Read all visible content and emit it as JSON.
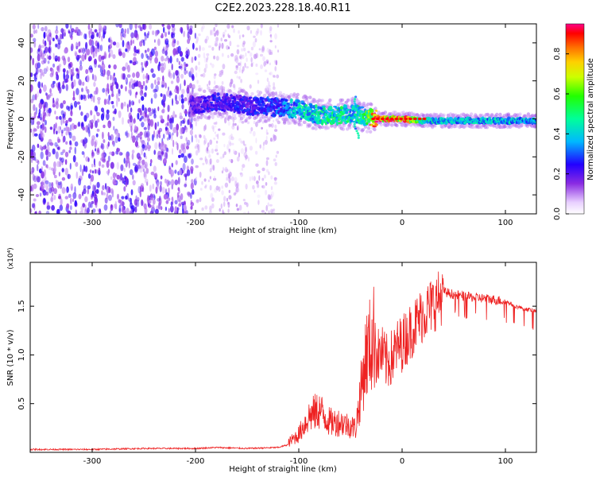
{
  "title": "C2E2.2023.228.18.40.R11",
  "chart_data": [
    {
      "type": "heatmap",
      "name": "spectrogram",
      "xlabel": "Height of straight line (km)",
      "ylabel": "Frequency (Hz)",
      "xlim": [
        -360,
        130
      ],
      "ylim": [
        -50,
        50
      ],
      "xticks": [
        -300,
        -200,
        -100,
        0,
        100
      ],
      "xtick_labels": [
        "-300",
        "-200",
        "-100",
        "0",
        "100"
      ],
      "yticks": [
        -40,
        -20,
        0,
        20,
        40
      ],
      "ytick_labels": [
        "-40",
        "-20",
        "0",
        "20",
        "40"
      ],
      "colorbar": {
        "label": "Normalized spectral amplitude",
        "range": [
          0,
          0.95
        ],
        "ticks": [
          0.0,
          0.2,
          0.4,
          0.6,
          0.8
        ],
        "tick_labels": [
          "0.0",
          "0.2",
          "0.4",
          "0.6",
          "0.8"
        ]
      },
      "noise_region_km": [
        -360,
        -200
      ],
      "faint_region_km": [
        -200,
        -120
      ],
      "signal_track": {
        "x": [
          -205,
          -180,
          -150,
          -120,
          -100,
          -80,
          -60,
          -45,
          -35,
          -28,
          -20,
          0,
          20,
          40,
          60,
          80,
          100,
          130
        ],
        "y": [
          7,
          9,
          7,
          6,
          5,
          2,
          2,
          3,
          1,
          0,
          0,
          0,
          -1,
          -1,
          -1,
          -1,
          -1,
          -1
        ],
        "amplitude": [
          0.2,
          0.25,
          0.25,
          0.3,
          0.45,
          0.45,
          0.5,
          0.45,
          0.55,
          0.9,
          0.9,
          0.88,
          0.5,
          0.42,
          0.42,
          0.42,
          0.42,
          0.4
        ]
      }
    },
    {
      "type": "line",
      "name": "snr",
      "xlabel": "Height of straight line (km)",
      "ylabel": "SNR (10 * v/v)",
      "yscale_label": "(x10⁴)",
      "xlim": [
        -360,
        130
      ],
      "ylim": [
        0,
        1.95
      ],
      "xticks": [
        -300,
        -200,
        -100,
        0,
        100
      ],
      "xtick_labels": [
        "-300",
        "-200",
        "-100",
        "0",
        "100"
      ],
      "yticks": [
        0.5,
        1.0,
        1.5
      ],
      "ytick_labels": [
        "0.5",
        "1.0",
        "1.5"
      ],
      "color": "#ee2222",
      "series": [
        {
          "name": "SNR",
          "x": [
            -360,
            -300,
            -250,
            -200,
            -180,
            -150,
            -120,
            -110,
            -100,
            -90,
            -80,
            -70,
            -60,
            -50,
            -45,
            -40,
            -35,
            -30,
            -25,
            -20,
            -15,
            -10,
            -5,
            0,
            10,
            20,
            30,
            40,
            50,
            60,
            80,
            100,
            110,
            120,
            130
          ],
          "y": [
            0.03,
            0.03,
            0.04,
            0.04,
            0.05,
            0.04,
            0.05,
            0.08,
            0.15,
            0.3,
            0.35,
            0.25,
            0.25,
            0.22,
            0.2,
            0.5,
            0.8,
            0.9,
            1.0,
            1.05,
            0.95,
            1.0,
            1.1,
            1.15,
            1.3,
            1.45,
            1.55,
            1.65,
            1.62,
            1.6,
            1.58,
            1.55,
            1.5,
            1.47,
            1.45
          ]
        }
      ]
    }
  ]
}
